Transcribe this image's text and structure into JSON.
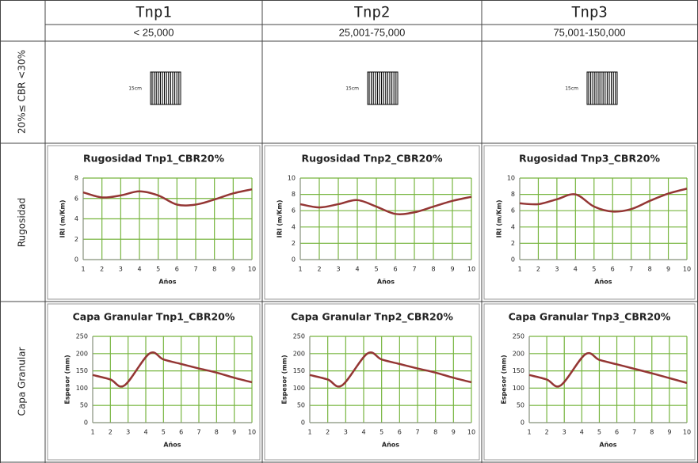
{
  "table": {
    "columns": [
      {
        "name": "Tnp1",
        "range": "< 25,000"
      },
      {
        "name": "Tnp2",
        "range": "25,001-75,000"
      },
      {
        "name": "Tnp3",
        "range": "75,001-150,000"
      }
    ],
    "rows": [
      {
        "label": "20%≤ CBR <30%",
        "cells": [
          "15cm",
          "15cm",
          "15cm"
        ]
      },
      {
        "label": "Rugosidad"
      },
      {
        "label": "Capa Granular"
      }
    ]
  },
  "chart_data": [
    {
      "type": "line",
      "title": "Rugosidad Tnp1_CBR20%",
      "x_label": "Años",
      "y_label": "IRI (m/Km)",
      "x": [
        1,
        2,
        3,
        4,
        5,
        6,
        7,
        8,
        9,
        10
      ],
      "values": [
        6.6,
        6.1,
        6.3,
        6.7,
        6.3,
        5.4,
        5.4,
        5.9,
        6.5,
        6.9
      ],
      "color": "#943634",
      "grid_color": "#77b53f",
      "grid": true,
      "xlim": [
        1,
        10
      ],
      "xticks": [
        1,
        2,
        3,
        4,
        5,
        6,
        7,
        8,
        9,
        10
      ],
      "ylim": [
        0,
        8
      ],
      "yticks": [
        0,
        2,
        4,
        6,
        8
      ]
    },
    {
      "type": "line",
      "title": "Rugosidad Tnp2_CBR20%",
      "x_label": "Años",
      "y_label": "IRI (m/Km)",
      "x": [
        1,
        2,
        3,
        4,
        5,
        6,
        7,
        8,
        9,
        10
      ],
      "values": [
        6.8,
        6.4,
        6.8,
        7.3,
        6.5,
        5.6,
        5.8,
        6.5,
        7.2,
        7.7
      ],
      "color": "#943634",
      "grid_color": "#77b53f",
      "grid": true,
      "xlim": [
        1,
        10
      ],
      "xticks": [
        1,
        2,
        3,
        4,
        5,
        6,
        7,
        8,
        9,
        10
      ],
      "ylim": [
        0,
        10
      ],
      "yticks": [
        0,
        2,
        4,
        6,
        8,
        10
      ]
    },
    {
      "type": "line",
      "title": "Rugosidad Tnp3_CBR20%",
      "x_label": "Años",
      "y_label": "IRI (m/Km)",
      "x": [
        1,
        2,
        3,
        4,
        5,
        6,
        7,
        8,
        9,
        10
      ],
      "values": [
        6.9,
        6.8,
        7.4,
        8.0,
        6.5,
        5.9,
        6.2,
        7.2,
        8.1,
        8.7
      ],
      "color": "#943634",
      "grid_color": "#77b53f",
      "grid": true,
      "xlim": [
        1,
        10
      ],
      "xticks": [
        1,
        2,
        3,
        4,
        5,
        6,
        7,
        8,
        9,
        10
      ],
      "ylim": [
        0,
        10
      ],
      "yticks": [
        0,
        2,
        4,
        6,
        8,
        10
      ]
    },
    {
      "type": "line",
      "title": "Capa Granular Tnp1_CBR20%",
      "x_label": "Años",
      "y_label": "Espesor (mm)",
      "x": [
        1,
        2,
        2.8,
        4.2,
        5,
        6,
        7,
        8,
        9,
        10
      ],
      "values": [
        138,
        125,
        108,
        200,
        183,
        170,
        157,
        145,
        130,
        117
      ],
      "color": "#943634",
      "grid_color": "#77b53f",
      "grid": true,
      "xlim": [
        1,
        10
      ],
      "xticks": [
        1,
        2,
        3,
        4,
        5,
        6,
        7,
        8,
        9,
        10
      ],
      "ylim": [
        0,
        250
      ],
      "yticks": [
        0,
        50,
        100,
        150,
        200,
        250
      ]
    },
    {
      "type": "line",
      "title": "Capa Granular Tnp2_CBR20%",
      "x_label": "Años",
      "y_label": "Espesor (mm)",
      "x": [
        1,
        2,
        2.8,
        4.2,
        5,
        6,
        7,
        8,
        9,
        10
      ],
      "values": [
        138,
        125,
        108,
        200,
        183,
        170,
        157,
        145,
        130,
        117
      ],
      "color": "#943634",
      "grid_color": "#77b53f",
      "grid": true,
      "xlim": [
        1,
        10
      ],
      "xticks": [
        1,
        2,
        3,
        4,
        5,
        6,
        7,
        8,
        9,
        10
      ],
      "ylim": [
        0,
        250
      ],
      "yticks": [
        0,
        50,
        100,
        150,
        200,
        250
      ]
    },
    {
      "type": "line",
      "title": "Capa Granular Tnp3_CBR20%",
      "x_label": "Años",
      "y_label": "Espesor (mm)",
      "x": [
        1,
        2,
        2.8,
        4.2,
        5,
        6,
        7,
        8,
        9,
        10
      ],
      "values": [
        138,
        125,
        108,
        198,
        182,
        169,
        156,
        143,
        129,
        115
      ],
      "color": "#943634",
      "grid_color": "#77b53f",
      "grid": true,
      "xlim": [
        1,
        10
      ],
      "xticks": [
        1,
        2,
        3,
        4,
        5,
        6,
        7,
        8,
        9,
        10
      ],
      "ylim": [
        0,
        250
      ],
      "yticks": [
        0,
        50,
        100,
        150,
        200,
        250
      ]
    }
  ]
}
